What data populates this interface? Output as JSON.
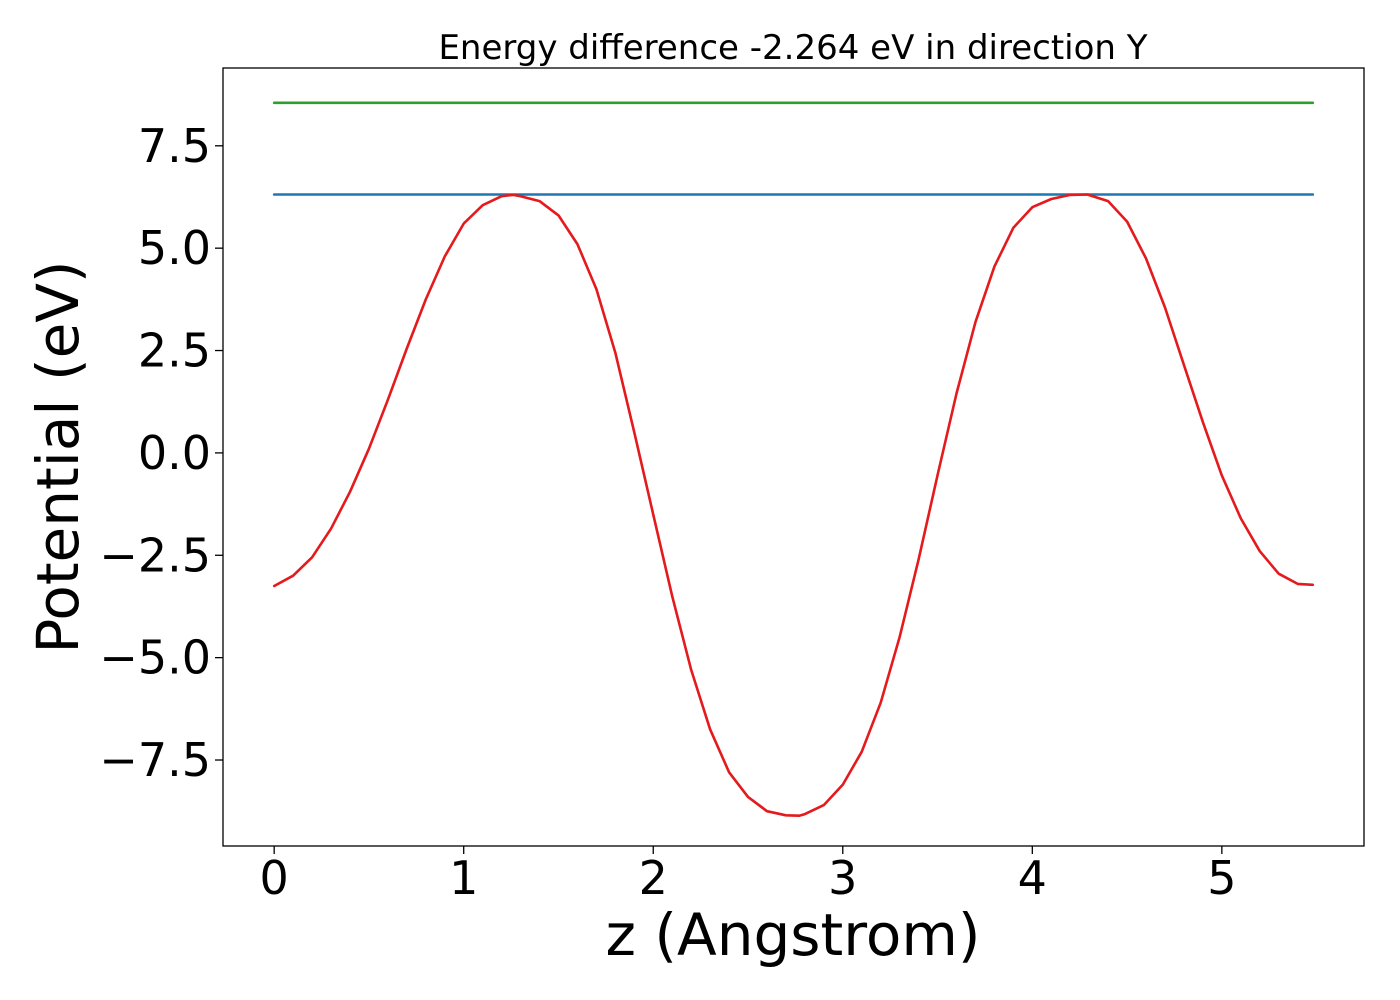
{
  "chart_data": {
    "type": "line",
    "title": "Energy difference -2.264 eV in direction Y",
    "xlabel": "z (Angstrom)",
    "ylabel": "Potential (eV)",
    "xlim": [
      -0.27,
      5.75
    ],
    "ylim": [
      -9.6,
      9.4
    ],
    "xticks": [
      0,
      1,
      2,
      3,
      4,
      5
    ],
    "xtick_labels": [
      "0",
      "1",
      "2",
      "3",
      "4",
      "5"
    ],
    "yticks": [
      -7.5,
      -5.0,
      -2.5,
      0.0,
      2.5,
      5.0,
      7.5
    ],
    "ytick_labels": [
      "−7.5",
      "−5.0",
      "−2.5",
      "0.0",
      "2.5",
      "5.0",
      "7.5"
    ],
    "grid": false,
    "series": [
      {
        "color": "#2ca02c",
        "x": [
          0.0,
          5.48
        ],
        "y": [
          8.55,
          8.55
        ]
      },
      {
        "color": "#1f77b4",
        "x": [
          0.0,
          5.48
        ],
        "y": [
          6.31,
          6.31
        ]
      },
      {
        "color": "#e41a1c",
        "x": [
          0.0,
          0.1,
          0.2,
          0.3,
          0.4,
          0.5,
          0.6,
          0.7,
          0.8,
          0.9,
          1.0,
          1.1,
          1.2,
          1.26,
          1.3,
          1.4,
          1.5,
          1.6,
          1.7,
          1.8,
          1.9,
          2.0,
          2.1,
          2.2,
          2.3,
          2.4,
          2.5,
          2.6,
          2.7,
          2.77,
          2.8,
          2.9,
          3.0,
          3.1,
          3.2,
          3.3,
          3.4,
          3.5,
          3.6,
          3.7,
          3.8,
          3.9,
          4.0,
          4.1,
          4.2,
          4.29,
          4.4,
          4.5,
          4.6,
          4.7,
          4.8,
          4.9,
          5.0,
          5.1,
          5.2,
          5.3,
          5.4,
          5.48
        ],
        "y": [
          -3.25,
          -3.0,
          -2.55,
          -1.85,
          -0.95,
          0.1,
          1.3,
          2.55,
          3.75,
          4.8,
          5.6,
          6.05,
          6.27,
          6.3,
          6.27,
          6.15,
          5.8,
          5.1,
          4.0,
          2.45,
          0.5,
          -1.5,
          -3.5,
          -5.3,
          -6.75,
          -7.8,
          -8.4,
          -8.75,
          -8.85,
          -8.86,
          -8.82,
          -8.6,
          -8.1,
          -7.3,
          -6.1,
          -4.5,
          -2.6,
          -0.55,
          1.45,
          3.2,
          4.55,
          5.5,
          6.0,
          6.2,
          6.3,
          6.31,
          6.15,
          5.65,
          4.75,
          3.55,
          2.15,
          0.75,
          -0.55,
          -1.6,
          -2.4,
          -2.95,
          -3.2,
          -3.22
        ]
      }
    ]
  }
}
